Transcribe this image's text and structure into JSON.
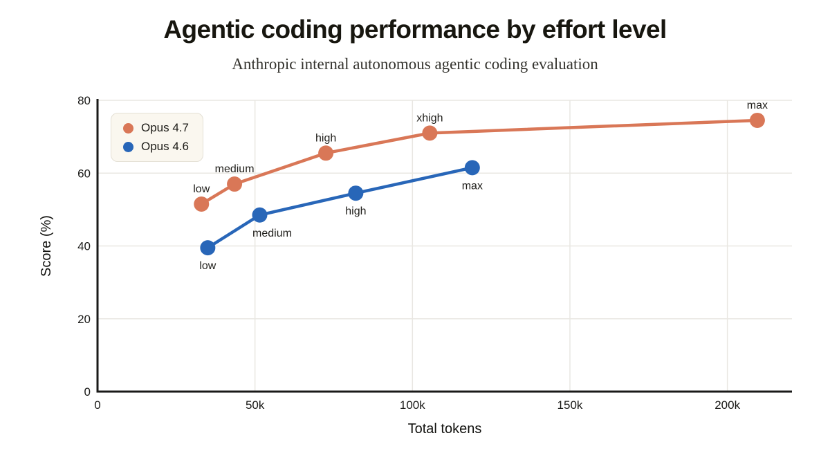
{
  "page": {
    "title": "Agentic coding performance by effort level",
    "subtitle": "Anthropic internal autonomous agentic coding evaluation"
  },
  "legend": {
    "items": [
      {
        "label": "Opus 4.7",
        "color": "#d97757"
      },
      {
        "label": "Opus 4.6",
        "color": "#2866b8"
      }
    ]
  },
  "chart_data": {
    "type": "line",
    "title": "Agentic coding performance by effort level",
    "subtitle": "Anthropic internal autonomous agentic coding evaluation",
    "xlabel": "Total tokens",
    "ylabel": "Score (%)",
    "xlim": [
      0,
      220500
    ],
    "ylim": [
      0,
      80
    ],
    "grid": true,
    "legend_position": "top-left",
    "x_ticks": [
      {
        "value": 0,
        "label": "0"
      },
      {
        "value": 50000,
        "label": "50k"
      },
      {
        "value": 100000,
        "label": "100k"
      },
      {
        "value": 150000,
        "label": "150k"
      },
      {
        "value": 200000,
        "label": "200k"
      }
    ],
    "y_ticks": [
      {
        "value": 0,
        "label": "0"
      },
      {
        "value": 20,
        "label": "20"
      },
      {
        "value": 40,
        "label": "40"
      },
      {
        "value": 60,
        "label": "60"
      },
      {
        "value": 80,
        "label": "80"
      }
    ],
    "series": [
      {
        "name": "Opus 4.7",
        "color": "#d97757",
        "points": [
          {
            "x": 33000,
            "y": 51.5,
            "label": "low",
            "label_pos": "above",
            "label_dx": 0
          },
          {
            "x": 43500,
            "y": 57.0,
            "label": "medium",
            "label_pos": "above",
            "label_dx": 0
          },
          {
            "x": 72500,
            "y": 65.5,
            "label": "high",
            "label_pos": "above",
            "label_dx": 0
          },
          {
            "x": 105500,
            "y": 71.0,
            "label": "xhigh",
            "label_pos": "above",
            "label_dx": 0
          },
          {
            "x": 209500,
            "y": 74.5,
            "label": "max",
            "label_pos": "above",
            "label_dx": 0
          }
        ]
      },
      {
        "name": "Opus 4.6",
        "color": "#2866b8",
        "points": [
          {
            "x": 35000,
            "y": 39.5,
            "label": "low",
            "label_pos": "below",
            "label_dx": 0
          },
          {
            "x": 51500,
            "y": 48.5,
            "label": "medium",
            "label_pos": "below",
            "label_dx": 18
          },
          {
            "x": 82000,
            "y": 54.5,
            "label": "high",
            "label_pos": "below",
            "label_dx": 0
          },
          {
            "x": 119000,
            "y": 61.5,
            "label": "max",
            "label_pos": "below",
            "label_dx": 0
          }
        ]
      }
    ],
    "colors": {
      "axis": "#1a1a18",
      "grid": "#e9e7e2",
      "tick_label": "#191917",
      "point_label": "#1f1e1a",
      "axis_title": "#11110e"
    }
  }
}
